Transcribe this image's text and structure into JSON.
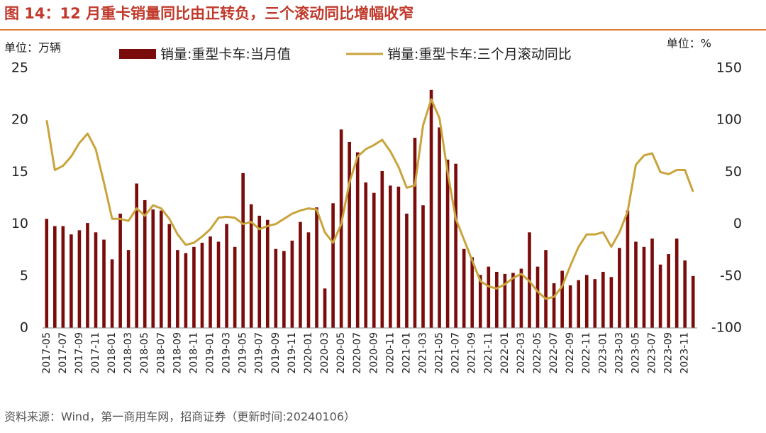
{
  "chart_data": {
    "type": "bar_line",
    "title": "图 14：12 月重卡销量同比由正转负，三个滚动同比增幅收窄",
    "y_label": "单位：万辆",
    "y2_label": "单位：%",
    "source": "资料来源：Wind，第一商用车网，招商证券（更新时间:20240106）",
    "categories": [
      "2017-05",
      null,
      "2017-07",
      null,
      "2017-09",
      null,
      "2017-11",
      null,
      "2018-01",
      null,
      "2018-03",
      null,
      "2018-05",
      null,
      "2018-07",
      null,
      "2018-09",
      null,
      "2018-11",
      null,
      "2019-01",
      null,
      "2019-03",
      null,
      "2019-05",
      null,
      "2019-07",
      null,
      "2019-09",
      null,
      "2019-11",
      null,
      "2020-01",
      null,
      "2020-03",
      null,
      "2020-05",
      null,
      "2020-07",
      null,
      "2020-09",
      null,
      "2020-11",
      null,
      "2021-01",
      null,
      "2021-03",
      null,
      "2021-05",
      null,
      "2021-07",
      null,
      "2021-09",
      null,
      "2021-11",
      null,
      "2022-01",
      null,
      "2022-03",
      null,
      "2022-05",
      null,
      "2022-07",
      null,
      "2022-09",
      null,
      "2022-11",
      null,
      "2023-01",
      null,
      "2023-03",
      null,
      "2023-05",
      null,
      "2023-07",
      null,
      "2023-09",
      null,
      "2023-11",
      null
    ],
    "series": [
      {
        "name": "销量:重型卡车:当月值",
        "color": "#7b0c0c",
        "kind": "bar",
        "values": [
          10.5,
          9.8,
          9.8,
          9.0,
          9.4,
          10.1,
          9.2,
          8.5,
          6.6,
          11.0,
          7.5,
          13.9,
          12.3,
          11.4,
          11.3,
          10.0,
          7.5,
          7.2,
          7.8,
          8.2,
          8.8,
          8.3,
          10.0,
          7.8,
          14.9,
          11.9,
          10.8,
          10.4,
          7.6,
          7.4,
          8.4,
          10.2,
          9.2,
          11.6,
          3.8,
          12.0,
          19.1,
          17.9,
          16.9,
          14.0,
          13.0,
          15.1,
          13.7,
          13.6,
          11.0,
          18.3,
          11.8,
          22.9,
          19.3,
          16.2,
          15.8,
          7.6,
          6.8,
          5.1,
          5.9,
          5.4,
          5.2,
          5.3,
          5.7,
          9.2,
          5.9,
          7.5,
          4.3,
          5.5,
          4.1,
          4.6,
          5.1,
          4.7,
          5.4,
          4.9,
          7.7,
          11.3,
          8.3,
          7.8,
          8.6,
          6.1,
          7.1,
          8.6,
          6.5,
          5.0
        ]
      },
      {
        "name": "销量:重型卡车:三个月滚动同比",
        "color": "#c9a43c",
        "kind": "line",
        "axis": "y2",
        "values": [
          100,
          52,
          56,
          65,
          78,
          87,
          72,
          40,
          5,
          5,
          3,
          15,
          8,
          18,
          15,
          5,
          -10,
          -20,
          -18,
          -12,
          -5,
          6,
          7,
          6,
          0,
          2,
          -5,
          -2,
          0,
          5,
          10,
          13,
          15,
          14,
          -8,
          -18,
          0,
          40,
          65,
          72,
          76,
          81,
          70,
          55,
          35,
          37,
          95,
          120,
          102,
          50,
          5,
          -15,
          -35,
          -55,
          -60,
          -62,
          -58,
          -52,
          -48,
          -55,
          -65,
          -72,
          -70,
          -60,
          -40,
          -22,
          -10,
          -10,
          -8,
          -22,
          -8,
          12,
          57,
          66,
          68,
          50,
          48,
          52,
          52,
          31
        ]
      }
    ],
    "ylim": [
      0,
      25
    ],
    "yticks": [
      0,
      5,
      10,
      15,
      20,
      25
    ],
    "y2lim": [
      -100,
      150
    ],
    "y2ticks": [
      -100,
      -50,
      0,
      50,
      100,
      150
    ]
  }
}
